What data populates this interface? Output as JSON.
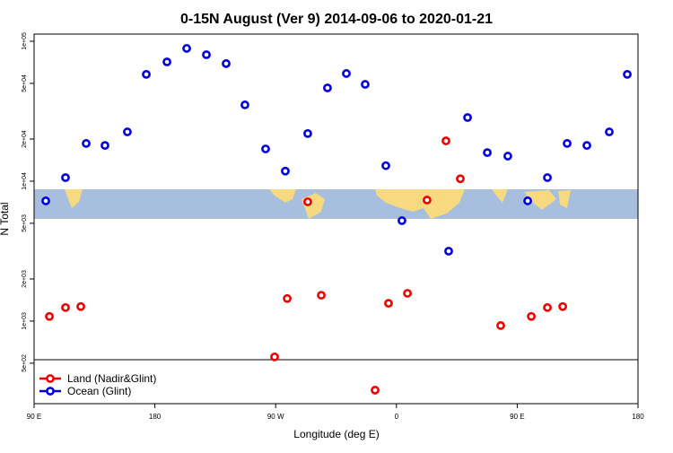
{
  "chart_data": {
    "type": "scatter",
    "title": "0-15N August (Ver 9)   2014-09-06 to 2020-01-21",
    "x_label": "Longitude (deg E)",
    "y_label": "N Total",
    "log_y": true,
    "xlim": [
      90,
      540
    ],
    "xticks": [
      {
        "value": 90,
        "label": "90 E"
      },
      {
        "value": 180,
        "label": "180"
      },
      {
        "value": 270,
        "label": "90 W"
      },
      {
        "value": 360,
        "label": "0"
      },
      {
        "value": 450,
        "label": "90 E"
      },
      {
        "value": 540,
        "label": "180"
      }
    ],
    "ylim": [
      257,
      112500
    ],
    "yticks": [
      {
        "value": 100000,
        "label": "1e+05"
      },
      {
        "value": 50000,
        "label": "5e+04"
      },
      {
        "value": 20000,
        "label": "2e+04"
      },
      {
        "value": 10000,
        "label": "1e+04"
      },
      {
        "value": 5000,
        "label": "5e+03"
      },
      {
        "value": 2000,
        "label": "2e+03"
      },
      {
        "value": 1000,
        "label": "1e+03"
      },
      {
        "value": 500,
        "label": "5e+02"
      }
    ],
    "legend": "bottom-left",
    "series": [
      {
        "name": "Land (Nadir&Glint)",
        "color": "#ee0000",
        "x": [
          101.4,
          113.4,
          124.8,
          269.2,
          278.6,
          293.9,
          304,
          344.1,
          354.1,
          368.2,
          382.8,
          396.9,
          407.6,
          437.7,
          460.5,
          472.5,
          483.9
        ],
        "values": [
          1080,
          1250,
          1270,
          555,
          1450,
          7120,
          1530,
          321,
          1340,
          1580,
          7330,
          19400,
          10400,
          929,
          1080,
          1250,
          1270
        ]
      },
      {
        "name": "Ocean (Glint)",
        "color": "#0000dd",
        "x": [
          98.7,
          113.4,
          128.8,
          142.8,
          159.5,
          173.6,
          189,
          203.7,
          218.4,
          233.1,
          247.1,
          262.5,
          277.2,
          293.9,
          308.6,
          322.7,
          336.7,
          352.1,
          364.1,
          398.9,
          413,
          427.7,
          443,
          457.8,
          472.5,
          487.2,
          501.9,
          518.6,
          532
        ],
        "values": [
          7230,
          10600,
          18600,
          18000,
          22500,
          58000,
          71200,
          88900,
          80100,
          69200,
          35100,
          17000,
          11800,
          21900,
          46400,
          58800,
          49200,
          12900,
          5220,
          3160,
          28500,
          16000,
          15100,
          7230,
          10600,
          18600,
          18000,
          22500,
          58000
        ]
      }
    ]
  }
}
